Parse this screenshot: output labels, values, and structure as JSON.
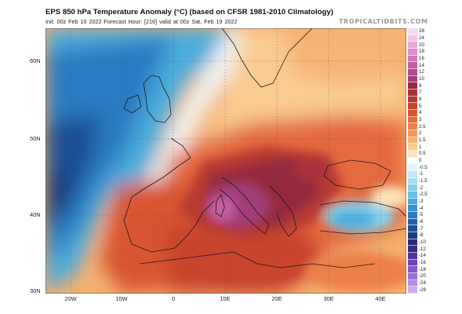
{
  "header": {
    "title": "EPS 850 hPa Temperature Anomaly (°C) (based on CFSR 1981-2010 Climatology)",
    "subtitle": "Init: 00z Feb 10 2022   Forecast Hour: [216]   valid at 00z Sat, Feb 19 2022",
    "brand": "TROPICALTIDBITS.COM"
  },
  "map": {
    "lat_labels": [
      "60N",
      "50N",
      "40N",
      "30N"
    ],
    "lon_labels": [
      "20W",
      "10W",
      "0",
      "10E",
      "20E",
      "30E",
      "40E"
    ],
    "region": "Europe, North Africa and the North Atlantic",
    "features": {
      "warm_core": "strong warm anomaly centred over Italy, Sardinia, the Tyrrhenian Sea and the Balkans",
      "cold_atlantic": "cold anomaly over the North Atlantic west of Iberia and the British Isles",
      "cold_turkey": "cold anomaly over central Turkey"
    }
  },
  "legend": {
    "values": [
      "28",
      "24",
      "20",
      "18",
      "16",
      "14",
      "12",
      "10",
      "8",
      "7",
      "6",
      "5",
      "4",
      "3",
      "2.5",
      "2",
      "1.5",
      "1",
      "0.5",
      "0",
      "-0.5",
      "-1",
      "-1.5",
      "-2",
      "-2.5",
      "-3",
      "-4",
      "-5",
      "-6",
      "-7",
      "-8",
      "-10",
      "-12",
      "-14",
      "-16",
      "-18",
      "-20",
      "-24",
      "-28"
    ],
    "colors": [
      "#f7d9ef",
      "#f1c3e3",
      "#e8a9d6",
      "#dd8ec7",
      "#d176b6",
      "#c45ea3",
      "#b24b8c",
      "#a23d78",
      "#962a3d",
      "#a8323a",
      "#b83a33",
      "#c8442d",
      "#d85533",
      "#e46b3f",
      "#ec8048",
      "#f29a5c",
      "#f6b474",
      "#f9cc91",
      "#fbe2b8",
      "#ffffff",
      "#e2f4f8",
      "#c5eaf4",
      "#a5def0",
      "#86d0ec",
      "#67c1e6",
      "#4aabdd",
      "#3593d2",
      "#2a7bc3",
      "#2463ab",
      "#1f4f95",
      "#1d3d7e",
      "#2a2c72",
      "#3d2a87",
      "#55339f",
      "#6e44b6",
      "#8758c9",
      "#9f70d6",
      "#b98ce2",
      "#d0aaec"
    ]
  }
}
